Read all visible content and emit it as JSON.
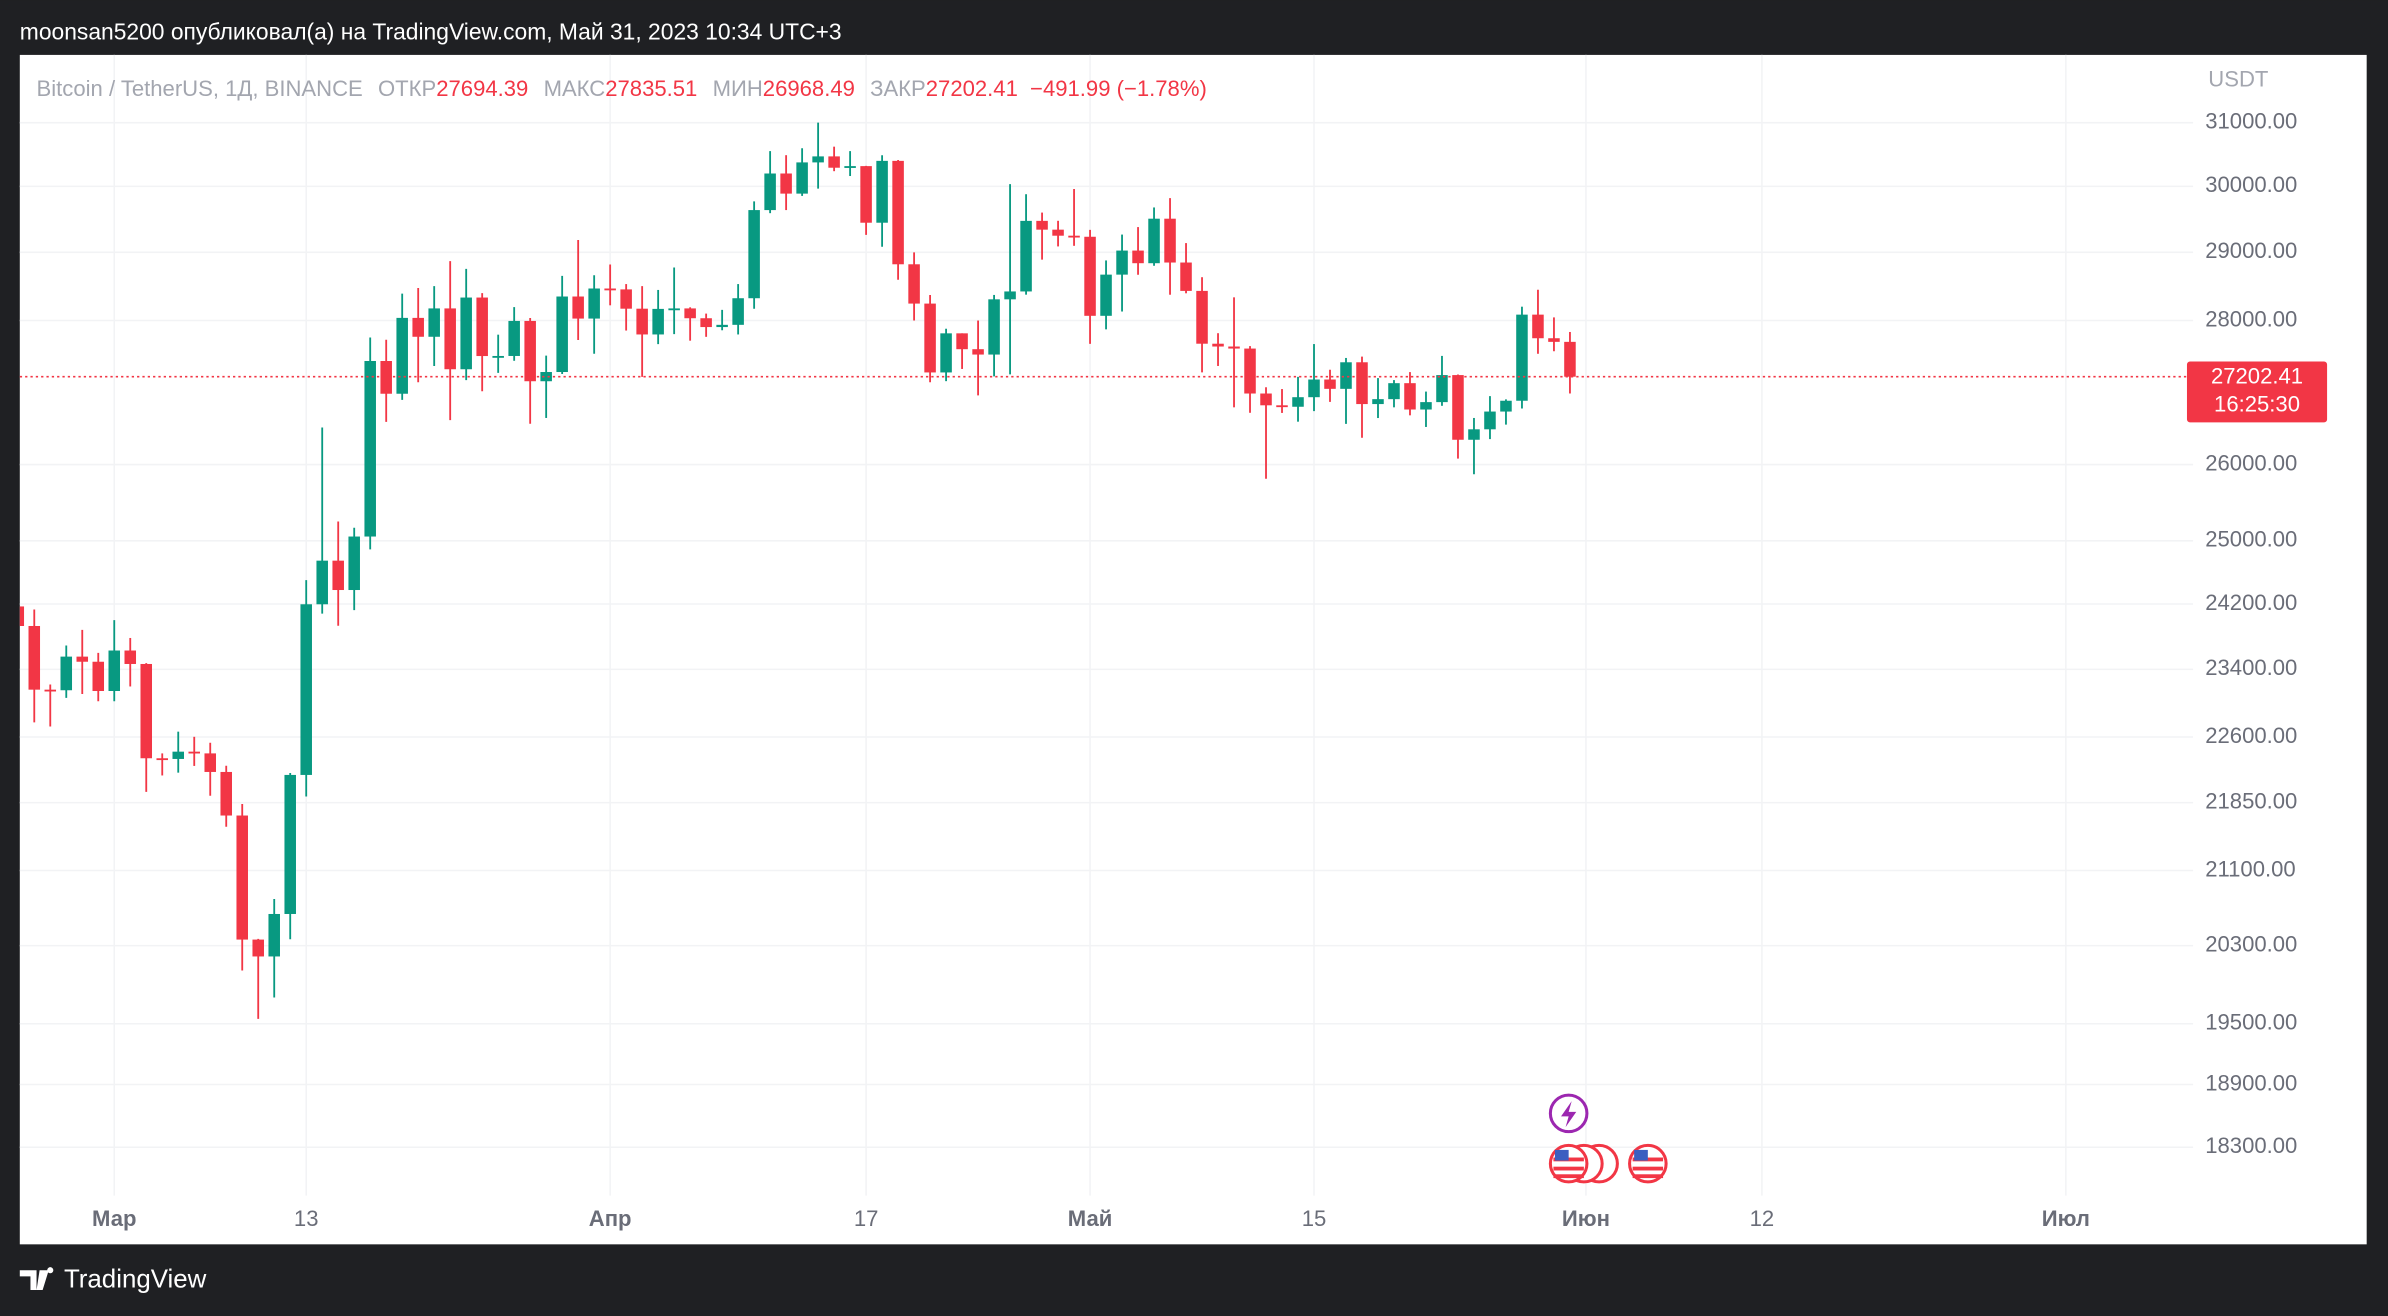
{
  "header": {
    "text": "moonsan5200 опубликовал(а) на TradingView.com, Май 31, 2023 10:34 UTC+3"
  },
  "footer": {
    "brand": "TradingView"
  },
  "chart_data": {
    "type": "candlestick",
    "legend": {
      "symbol": "Bitcoin / TetherUS, 1Д, BINANCE",
      "open_label": "ОТКР",
      "high_label": "МАКС",
      "low_label": "МИН",
      "close_label": "ЗАКР",
      "change": "−491.99 (−1.78%)"
    },
    "y_unit": "USDT",
    "countdown": "16:25:30",
    "up_color": "#089981",
    "down_color": "#f23645",
    "log_scale": true,
    "grid": true,
    "price_line": true,
    "ylim": [
      17850,
      32100
    ],
    "yticks": [
      {
        "value": 31000,
        "label": "31000.00"
      },
      {
        "value": 30000,
        "label": "30000.00"
      },
      {
        "value": 29000,
        "label": "29000.00"
      },
      {
        "value": 28000,
        "label": "28000.00"
      },
      {
        "value": 26000,
        "label": "26000.00"
      },
      {
        "value": 25000,
        "label": "25000.00"
      },
      {
        "value": 24200,
        "label": "24200.00"
      },
      {
        "value": 23400,
        "label": "23400.00"
      },
      {
        "value": 22600,
        "label": "22600.00"
      },
      {
        "value": 21850,
        "label": "21850.00"
      },
      {
        "value": 21100,
        "label": "21100.00"
      },
      {
        "value": 20300,
        "label": "20300.00"
      },
      {
        "value": 19500,
        "label": "19500.00"
      },
      {
        "value": 18900,
        "label": "18900.00"
      },
      {
        "value": 18300,
        "label": "18300.00"
      }
    ],
    "xlim": [
      "2023-02-23",
      "2023-07-08"
    ],
    "xticks": [
      {
        "value": "2023-03-01",
        "label": "Мар"
      },
      {
        "value": "2023-03-13",
        "label": "13"
      },
      {
        "value": "2023-04-01",
        "label": "Апр"
      },
      {
        "value": "2023-04-17",
        "label": "17"
      },
      {
        "value": "2023-05-01",
        "label": "Май"
      },
      {
        "value": "2023-05-15",
        "label": "15"
      },
      {
        "value": "2023-06-01",
        "label": "Июн"
      },
      {
        "value": "2023-06-12",
        "label": "12"
      },
      {
        "value": "2023-07-01",
        "label": "Июл"
      }
    ],
    "x": [
      "2023-02-23",
      "2023-02-24",
      "2023-02-25",
      "2023-02-26",
      "2023-02-27",
      "2023-02-28",
      "2023-03-01",
      "2023-03-02",
      "2023-03-03",
      "2023-03-04",
      "2023-03-05",
      "2023-03-06",
      "2023-03-07",
      "2023-03-08",
      "2023-03-09",
      "2023-03-10",
      "2023-03-11",
      "2023-03-12",
      "2023-03-13",
      "2023-03-14",
      "2023-03-15",
      "2023-03-16",
      "2023-03-17",
      "2023-03-18",
      "2023-03-19",
      "2023-03-20",
      "2023-03-21",
      "2023-03-22",
      "2023-03-23",
      "2023-03-24",
      "2023-03-25",
      "2023-03-26",
      "2023-03-27",
      "2023-03-28",
      "2023-03-29",
      "2023-03-30",
      "2023-03-31",
      "2023-04-01",
      "2023-04-02",
      "2023-04-03",
      "2023-04-04",
      "2023-04-05",
      "2023-04-06",
      "2023-04-07",
      "2023-04-08",
      "2023-04-09",
      "2023-04-10",
      "2023-04-11",
      "2023-04-12",
      "2023-04-13",
      "2023-04-14",
      "2023-04-15",
      "2023-04-16",
      "2023-04-17",
      "2023-04-18",
      "2023-04-19",
      "2023-04-20",
      "2023-04-21",
      "2023-04-22",
      "2023-04-23",
      "2023-04-24",
      "2023-04-25",
      "2023-04-26",
      "2023-04-27",
      "2023-04-28",
      "2023-04-29",
      "2023-04-30",
      "2023-05-01",
      "2023-05-02",
      "2023-05-03",
      "2023-05-04",
      "2023-05-05",
      "2023-05-06",
      "2023-05-07",
      "2023-05-08",
      "2023-05-09",
      "2023-05-10",
      "2023-05-11",
      "2023-05-12",
      "2023-05-13",
      "2023-05-14",
      "2023-05-15",
      "2023-05-16",
      "2023-05-17",
      "2023-05-18",
      "2023-05-19",
      "2023-05-20",
      "2023-05-21",
      "2023-05-22",
      "2023-05-23",
      "2023-05-24",
      "2023-05-25",
      "2023-05-26",
      "2023-05-27",
      "2023-05-28",
      "2023-05-29",
      "2023-05-30",
      "2023-05-31"
    ],
    "open": [
      24170,
      23928,
      23157,
      23150,
      23554,
      23492,
      23141,
      23628,
      23465,
      22354,
      22346,
      22430,
      22410,
      22197,
      21705,
      20363,
      20187,
      20633,
      22163,
      24197,
      24746,
      24375,
      25055,
      27423,
      26965,
      28038,
      27767,
      28175,
      27307,
      28333,
      27493,
      27494,
      27994,
      27139,
      27268,
      28348,
      28028,
      28465,
      28452,
      28171,
      27800,
      28168,
      28175,
      28033,
      27906,
      27938,
      28323,
      29637,
      30200,
      29889,
      30373,
      30467,
      30290,
      30315,
      29445,
      30397,
      28822,
      28245,
      27262,
      27816,
      27590,
      27514,
      28307,
      28422,
      29473,
      29340,
      29249,
      29233,
      28068,
      28669,
      29026,
      28838,
      29506,
      28848,
      28430,
      27668,
      27628,
      27599,
      26968,
      26805,
      26785,
      26917,
      27163,
      27033,
      27405,
      26822,
      26890,
      27112,
      26747,
      26849,
      27225,
      26334,
      26476,
      26719,
      26868,
      28085,
      27746,
      27694.39
    ],
    "high": [
      24479,
      24132,
      23219,
      23689,
      23880,
      23600,
      24000,
      23781,
      23476,
      22410,
      22662,
      22602,
      22533,
      22268,
      21834,
      20370,
      20792,
      22185,
      24500,
      26500,
      25250,
      25169,
      27756,
      27725,
      28390,
      28472,
      28500,
      28868,
      28754,
      28398,
      27797,
      28194,
      28037,
      27499,
      28650,
      29184,
      28660,
      28819,
      28530,
      28500,
      28444,
      28775,
      28191,
      28100,
      28154,
      28530,
      29770,
      30550,
      30486,
      30595,
      31000,
      30620,
      30550,
      30319,
      30485,
      30411,
      29000,
      28371,
      27882,
      27816,
      28000,
      28371,
      30036,
      29880,
      29599,
      29474,
      29960,
      29337,
      28879,
      29266,
      29379,
      29677,
      29820,
      29138,
      28631,
      27818,
      28336,
      27634,
      27055,
      27030,
      27200,
      27663,
      27300,
      27466,
      27485,
      27183,
      27155,
      27267,
      26995,
      27495,
      27233,
      26631,
      26932,
      26887,
      28200,
      28447,
      28045,
      27835.51
    ],
    "low": [
      23600,
      22770,
      22722,
      23059,
      23106,
      23020,
      23020,
      23195,
      21971,
      22157,
      22189,
      22266,
      21927,
      21580,
      20042,
      19549,
      19765,
      20366,
      21918,
      24080,
      23931,
      24124,
      24890,
      26578,
      26880,
      27124,
      27353,
      26601,
      27154,
      27000,
      27256,
      27426,
      26552,
      26631,
      27241,
      27720,
      27525,
      28220,
      27856,
      27200,
      27662,
      27805,
      27711,
      27766,
      27860,
      27800,
      28170,
      29590,
      29637,
      29854,
      29966,
      30236,
      30161,
      29261,
      29084,
      28594,
      28000,
      27125,
      27140,
      27311,
      26942,
      27207,
      27235,
      28375,
      28891,
      29088,
      29097,
      27666,
      27873,
      28130,
      28667,
      28800,
      28374,
      28395,
      27263,
      27353,
      26777,
      26702,
      25811,
      26700,
      26580,
      26725,
      26852,
      26550,
      26361,
      26630,
      26777,
      26667,
      26508,
      26798,
      26080,
      25871,
      26343,
      26540,
      26761,
      27525,
      27561,
      26968.49
    ],
    "close": [
      23928,
      23157,
      23150,
      23554,
      23492,
      23141,
      23628,
      23465,
      22354,
      22346,
      22430,
      22410,
      22197,
      21705,
      20363,
      20187,
      20633,
      22163,
      24197,
      24746,
      24375,
      25055,
      27423,
      26965,
      28038,
      27767,
      28175,
      27307,
      28333,
      27493,
      27494,
      27994,
      27139,
      27268,
      28348,
      28028,
      28465,
      28452,
      28171,
      27800,
      28168,
      28175,
      28033,
      27906,
      27938,
      28323,
      29637,
      30200,
      29889,
      30373,
      30467,
      30290,
      30315,
      29445,
      30397,
      28822,
      28245,
      27262,
      27816,
      27590,
      27514,
      28307,
      28422,
      29473,
      29340,
      29249,
      29233,
      28068,
      28669,
      29026,
      28838,
      29506,
      28848,
      28430,
      27668,
      27628,
      27599,
      26968,
      26805,
      26785,
      26917,
      27163,
      27033,
      27405,
      26822,
      26890,
      27112,
      26747,
      26849,
      27225,
      26334,
      26476,
      26719,
      26868,
      28085,
      27746,
      27694.39,
      27202.41
    ]
  }
}
